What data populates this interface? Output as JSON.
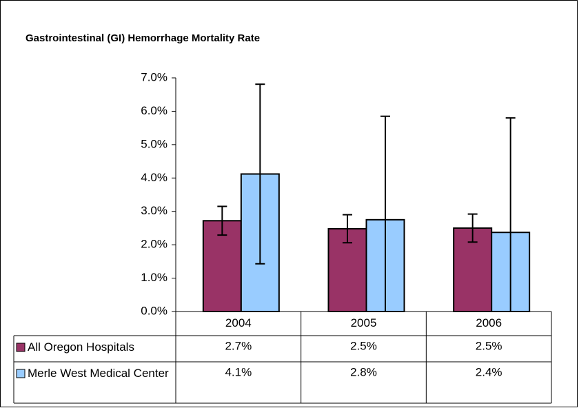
{
  "chart_data": {
    "type": "bar",
    "title": "Gastrointestinal (GI) Hemorrhage Mortality Rate",
    "categories": [
      "2004",
      "2005",
      "2006"
    ],
    "series": [
      {
        "name": "All Oregon Hospitals",
        "color": "#993366",
        "values": [
          2.72,
          2.48,
          2.5
        ],
        "errors": [
          0.43,
          0.42,
          0.42
        ],
        "value_labels": [
          "2.7%",
          "2.5%",
          "2.5%"
        ]
      },
      {
        "name": "Merle West Medical Center",
        "color": "#99ccff",
        "values": [
          4.12,
          2.75,
          2.37
        ],
        "errors": [
          2.69,
          3.1,
          3.43
        ],
        "value_labels": [
          "4.1%",
          "2.8%",
          "2.4%"
        ]
      }
    ],
    "ylim": [
      0,
      7
    ],
    "yticks": [
      {
        "value": 0,
        "label": "0.0%"
      },
      {
        "value": 1,
        "label": "1.0%"
      },
      {
        "value": 2,
        "label": "2.0%"
      },
      {
        "value": 3,
        "label": "3.0%"
      },
      {
        "value": 4,
        "label": "4.0%"
      },
      {
        "value": 5,
        "label": "5.0%"
      },
      {
        "value": 6,
        "label": "6.0%"
      },
      {
        "value": 7,
        "label": "7.0%"
      }
    ],
    "grid": false
  }
}
